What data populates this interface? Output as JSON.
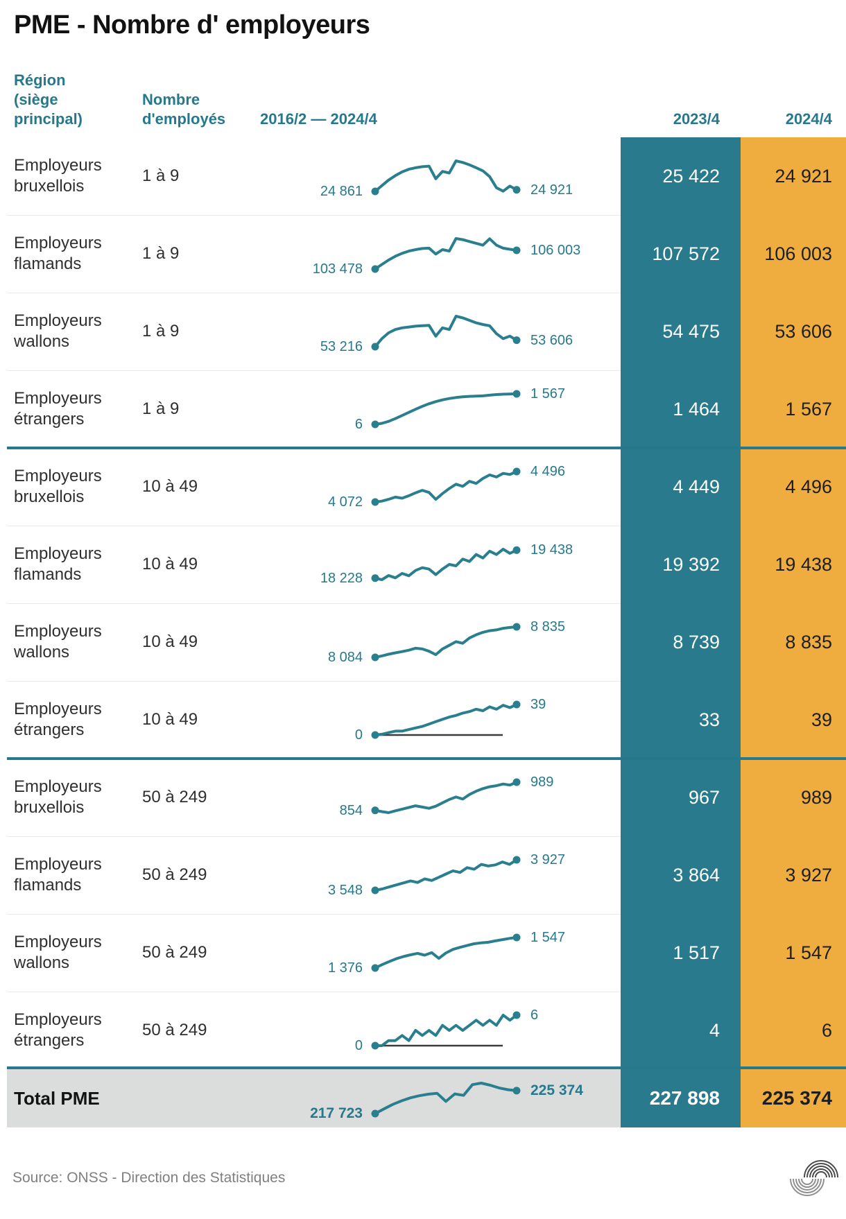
{
  "title": "PME - Nombre d' employeurs",
  "header": {
    "region": "Région\n(siège\nprincipal)",
    "size": "Nombre\nd'employés",
    "spark": "2016/2 — 2024/4",
    "prev": "2023/4",
    "curr": "2024/4"
  },
  "colors": {
    "teal_column": "#287A8C",
    "orange_column": "#EFAD40",
    "teal_text": "#26798C",
    "sparkline": "#2A7F8F",
    "total_background": "#DBDDDD",
    "zero_baseline": "#3C3C3C"
  },
  "rows": [
    {
      "region_line1": "Employeurs",
      "region_line2": "bruxellois",
      "size": "1 à 9",
      "spark_start": "24 861",
      "spark_end": "24 921",
      "prev": "25 422",
      "curr": "24 921",
      "zero_line": false,
      "group_start": false
    },
    {
      "region_line1": "Employeurs",
      "region_line2": "flamands",
      "size": "1 à 9",
      "spark_start": "103 478",
      "spark_end": "106 003",
      "prev": "107 572",
      "curr": "106 003",
      "zero_line": false,
      "group_start": false
    },
    {
      "region_line1": "Employeurs",
      "region_line2": "wallons",
      "size": "1 à 9",
      "spark_start": "53 216",
      "spark_end": "53 606",
      "prev": "54 475",
      "curr": "53 606",
      "zero_line": false,
      "group_start": false
    },
    {
      "region_line1": "Employeurs",
      "region_line2": "étrangers",
      "size": "1 à 9",
      "spark_start": "6",
      "spark_end": "1 567",
      "prev": "1 464",
      "curr": "1 567",
      "zero_line": false,
      "group_start": false
    },
    {
      "region_line1": "Employeurs",
      "region_line2": "bruxellois",
      "size": "10 à 49",
      "spark_start": "4 072",
      "spark_end": "4 496",
      "prev": "4 449",
      "curr": "4 496",
      "zero_line": false,
      "group_start": true
    },
    {
      "region_line1": "Employeurs",
      "region_line2": "flamands",
      "size": "10 à 49",
      "spark_start": "18 228",
      "spark_end": "19 438",
      "prev": "19 392",
      "curr": "19 438",
      "zero_line": false,
      "group_start": false
    },
    {
      "region_line1": "Employeurs",
      "region_line2": "wallons",
      "size": "10 à 49",
      "spark_start": "8 084",
      "spark_end": "8 835",
      "prev": "8 739",
      "curr": "8 835",
      "zero_line": false,
      "group_start": false
    },
    {
      "region_line1": "Employeurs",
      "region_line2": "étrangers",
      "size": "10 à 49",
      "spark_start": "0",
      "spark_end": "39",
      "prev": "33",
      "curr": "39",
      "zero_line": true,
      "group_start": false
    },
    {
      "region_line1": "Employeurs",
      "region_line2": "bruxellois",
      "size": "50 à 249",
      "spark_start": "854",
      "spark_end": "989",
      "prev": "967",
      "curr": "989",
      "zero_line": false,
      "group_start": true
    },
    {
      "region_line1": "Employeurs",
      "region_line2": "flamands",
      "size": "50 à 249",
      "spark_start": "3 548",
      "spark_end": "3 927",
      "prev": "3 864",
      "curr": "3 927",
      "zero_line": false,
      "group_start": false
    },
    {
      "region_line1": "Employeurs",
      "region_line2": "wallons",
      "size": "50 à 249",
      "spark_start": "1 376",
      "spark_end": "1 547",
      "prev": "1 517",
      "curr": "1 547",
      "zero_line": false,
      "group_start": false
    },
    {
      "region_line1": "Employeurs",
      "region_line2": "étrangers",
      "size": "50 à 249",
      "spark_start": "0",
      "spark_end": "6",
      "prev": "4",
      "curr": "6",
      "zero_line": true,
      "group_start": false
    }
  ],
  "total": {
    "label": "Total PME",
    "spark_start": "217 723",
    "spark_end": "225 374",
    "prev": "227 898",
    "curr": "225 374"
  },
  "footer": {
    "source": "Source: ONSS - Direction des Statistiques",
    "logo": "onss-arcs-logo"
  },
  "chart_data": {
    "type": "table",
    "title": "PME - Nombre d' employeurs",
    "columns": [
      "Région (siège principal)",
      "Nombre d'employés",
      "2016/2 — 2024/4 (sparkline)",
      "2023/4",
      "2024/4"
    ],
    "sparkline_period": {
      "start": "2016/2",
      "end": "2024/4"
    },
    "rows": [
      {
        "region": "Employeurs bruxellois",
        "size": "1 à 9",
        "start_value": 24861,
        "end_value": 24921,
        "val_2023_4": 25422,
        "val_2024_4": 24921,
        "series": [
          24861,
          25080,
          25290,
          25460,
          25600,
          25700,
          25760,
          25800,
          25820,
          25340,
          25620,
          25560,
          26020,
          25960,
          25870,
          25760,
          25640,
          25422,
          25000,
          24870,
          25060,
          24921
        ]
      },
      {
        "region": "Employeurs flamands",
        "size": "1 à 9",
        "start_value": 103478,
        "end_value": 106003,
        "val_2023_4": 107572,
        "val_2024_4": 106003,
        "series": [
          103478,
          104100,
          104700,
          105200,
          105600,
          105900,
          106100,
          106250,
          106300,
          105500,
          106100,
          105900,
          107600,
          107450,
          107200,
          106950,
          106700,
          107572,
          106700,
          106300,
          106150,
          106003
        ]
      },
      {
        "region": "Employeurs wallons",
        "size": "1 à 9",
        "start_value": 53216,
        "end_value": 53606,
        "val_2023_4": 54475,
        "val_2024_4": 53606,
        "series": [
          53216,
          53700,
          54050,
          54250,
          54350,
          54400,
          54450,
          54480,
          54500,
          53850,
          54350,
          54250,
          55050,
          54950,
          54800,
          54650,
          54550,
          54475,
          54000,
          53700,
          53850,
          53606
        ]
      },
      {
        "region": "Employeurs étrangers",
        "size": "1 à 9",
        "start_value": 6,
        "end_value": 1567,
        "val_2023_4": 1464,
        "val_2024_4": 1567,
        "series": [
          6,
          60,
          160,
          300,
          460,
          620,
          780,
          930,
          1060,
          1170,
          1260,
          1330,
          1380,
          1415,
          1440,
          1455,
          1464,
          1500,
          1530,
          1550,
          1560,
          1567
        ]
      },
      {
        "region": "Employeurs bruxellois",
        "size": "10 à 49",
        "start_value": 4072,
        "end_value": 4496,
        "val_2023_4": 4449,
        "val_2024_4": 4496,
        "series": [
          4072,
          4085,
          4110,
          4140,
          4125,
          4160,
          4200,
          4235,
          4205,
          4110,
          4190,
          4260,
          4320,
          4290,
          4360,
          4330,
          4400,
          4449,
          4420,
          4470,
          4455,
          4496
        ]
      },
      {
        "region": "Employeurs flamands",
        "size": "10 à 49",
        "start_value": 18228,
        "end_value": 19438,
        "val_2023_4": 19392,
        "val_2024_4": 19438,
        "series": [
          18228,
          18160,
          18340,
          18240,
          18430,
          18330,
          18560,
          18680,
          18620,
          18380,
          18620,
          18820,
          18760,
          19050,
          18950,
          19250,
          19100,
          19392,
          19250,
          19480,
          19300,
          19438
        ]
      },
      {
        "region": "Employeurs wallons",
        "size": "10 à 49",
        "start_value": 8084,
        "end_value": 8835,
        "val_2023_4": 8739,
        "val_2024_4": 8835,
        "series": [
          8084,
          8120,
          8160,
          8195,
          8225,
          8260,
          8310,
          8290,
          8235,
          8150,
          8290,
          8380,
          8470,
          8430,
          8560,
          8640,
          8700,
          8739,
          8760,
          8800,
          8820,
          8835
        ]
      },
      {
        "region": "Employeurs étrangers",
        "size": "10 à 49",
        "start_value": 0,
        "end_value": 39,
        "val_2023_4": 33,
        "val_2024_4": 39,
        "series": [
          0,
          1,
          3,
          5,
          5,
          7,
          9,
          11,
          14,
          17,
          20,
          23,
          25,
          28,
          30,
          33,
          31,
          36,
          33,
          38,
          35,
          39
        ]
      },
      {
        "region": "Employeurs bruxellois",
        "size": "50 à 249",
        "start_value": 854,
        "end_value": 989,
        "val_2023_4": 967,
        "val_2024_4": 989,
        "series": [
          854,
          848,
          843,
          852,
          860,
          868,
          876,
          870,
          864,
          874,
          890,
          906,
          918,
          908,
          930,
          946,
          958,
          967,
          972,
          980,
          975,
          989
        ]
      },
      {
        "region": "Employeurs flamands",
        "size": "50 à 249",
        "start_value": 3548,
        "end_value": 3927,
        "val_2023_4": 3864,
        "val_2024_4": 3927,
        "series": [
          3548,
          3565,
          3590,
          3615,
          3640,
          3665,
          3645,
          3690,
          3670,
          3710,
          3750,
          3790,
          3770,
          3830,
          3810,
          3870,
          3850,
          3864,
          3900,
          3870,
          3927
        ]
      },
      {
        "region": "Employeurs wallons",
        "size": "50 à 249",
        "start_value": 1376,
        "end_value": 1547,
        "val_2023_4": 1517,
        "val_2024_4": 1547,
        "series": [
          1376,
          1395,
          1412,
          1428,
          1440,
          1450,
          1458,
          1448,
          1462,
          1430,
          1460,
          1480,
          1492,
          1502,
          1512,
          1517,
          1520,
          1528,
          1535,
          1542,
          1547
        ]
      },
      {
        "region": "Employeurs étrangers",
        "size": "50 à 249",
        "start_value": 0,
        "end_value": 6,
        "val_2023_4": 4,
        "val_2024_4": 6,
        "series": [
          0,
          0,
          1,
          1,
          2,
          1,
          3,
          2,
          3,
          2,
          4,
          3,
          4,
          3,
          4,
          5,
          4,
          5,
          4,
          6,
          5,
          6
        ]
      }
    ],
    "total": {
      "region": "Total PME",
      "start_value": 217723,
      "end_value": 225374,
      "val_2023_4": 227898,
      "val_2024_4": 225374,
      "series": [
        217723,
        219300,
        220800,
        222000,
        223000,
        223700,
        224200,
        224500,
        221800,
        224300,
        223800,
        227400,
        227898,
        227200,
        226300,
        225700,
        225374
      ]
    }
  }
}
